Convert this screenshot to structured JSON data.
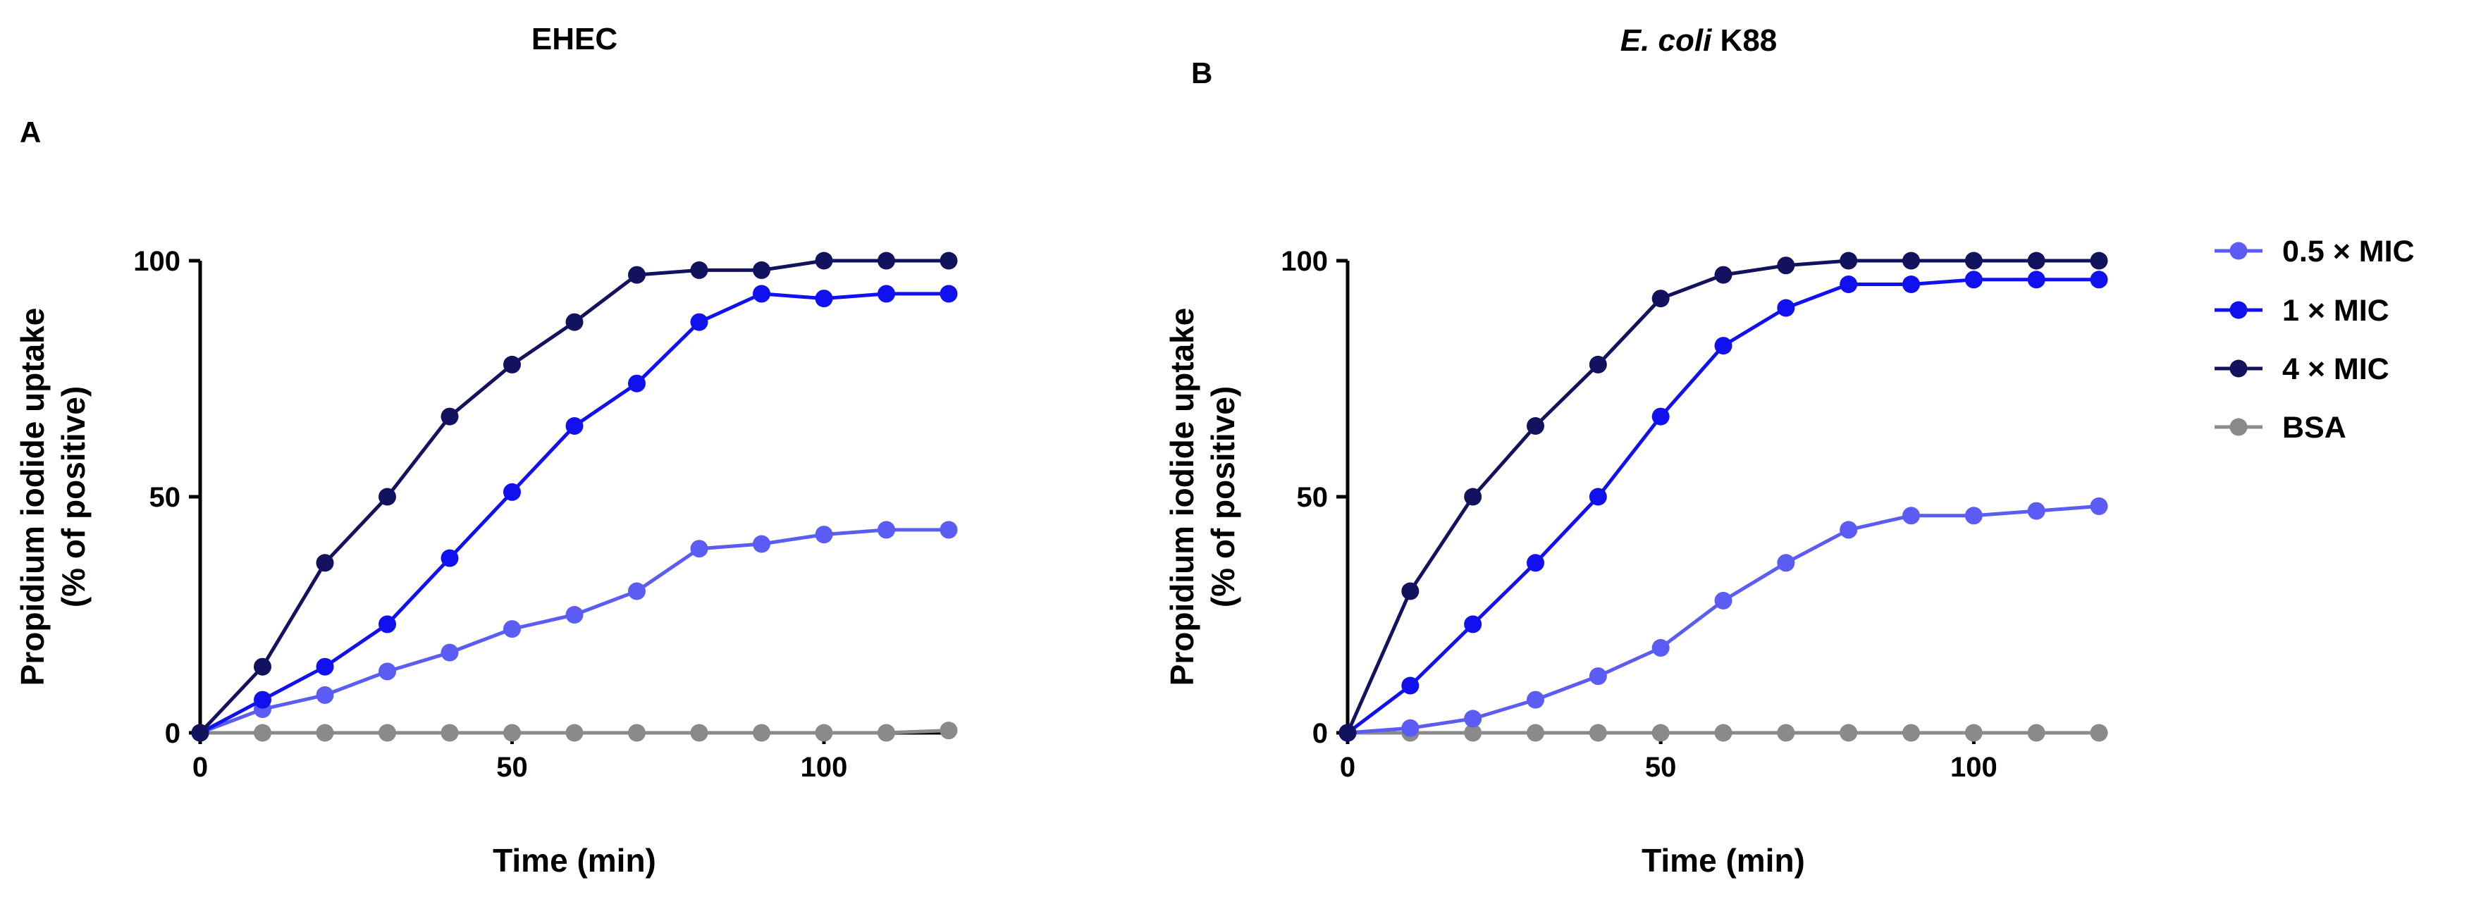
{
  "figure": {
    "panels": [
      {
        "letter": "A",
        "title": "EHEC"
      },
      {
        "letter": "B",
        "title_italic": "E. coli",
        "title_rest": " K88"
      }
    ]
  },
  "legend": [
    {
      "name": "0.5 × MIC",
      "color": "#5b5cf4"
    },
    {
      "name": "1 × MIC",
      "color": "#1111f0"
    },
    {
      "name": "4 × MIC",
      "color": "#12125f"
    },
    {
      "name": "BSA",
      "color": "#8a8a8a"
    }
  ],
  "chart_data": [
    {
      "type": "line",
      "title": "EHEC",
      "panel": "A",
      "xlabel": "Time (min)",
      "ylabel_line1": "Propidium iodide uptake",
      "ylabel_line2": "(% of positive)",
      "xlim": [
        0,
        120
      ],
      "ylim": [
        0,
        100
      ],
      "xticks": [
        0,
        50,
        100
      ],
      "yticks": [
        0,
        50,
        100
      ],
      "x": [
        0,
        10,
        20,
        30,
        40,
        50,
        60,
        70,
        80,
        90,
        100,
        110,
        120
      ],
      "series": [
        {
          "name": "0.5 × MIC",
          "values": [
            0,
            5,
            8,
            13,
            17,
            22,
            25,
            30,
            39,
            40,
            42,
            43,
            43
          ]
        },
        {
          "name": "1 × MIC",
          "values": [
            0,
            7,
            14,
            23,
            37,
            51,
            65,
            74,
            87,
            93,
            92,
            93,
            93
          ]
        },
        {
          "name": "4 × MIC",
          "values": [
            0,
            14,
            36,
            50,
            67,
            78,
            87,
            97,
            98,
            98,
            100,
            100,
            100
          ]
        },
        {
          "name": "BSA",
          "values": [
            0,
            0,
            0,
            0,
            0,
            0,
            0,
            0,
            0,
            0,
            0,
            0,
            0.5
          ]
        }
      ]
    },
    {
      "type": "line",
      "title": "E. coli K88",
      "panel": "B",
      "xlabel": "Time (min)",
      "ylabel_line1": "Propidium iodide uptake",
      "ylabel_line2": "(% of positive)",
      "xlim": [
        0,
        120
      ],
      "ylim": [
        0,
        100
      ],
      "xticks": [
        0,
        50,
        100
      ],
      "yticks": [
        0,
        50,
        100
      ],
      "x": [
        0,
        10,
        20,
        30,
        40,
        50,
        60,
        70,
        80,
        90,
        100,
        110,
        120
      ],
      "series": [
        {
          "name": "0.5 × MIC",
          "values": [
            0,
            1,
            3,
            7,
            12,
            18,
            28,
            36,
            43,
            46,
            46,
            47,
            48
          ]
        },
        {
          "name": "1 × MIC",
          "values": [
            0,
            10,
            23,
            36,
            50,
            67,
            82,
            90,
            95,
            95,
            96,
            96,
            96
          ]
        },
        {
          "name": "4 × MIC",
          "values": [
            0,
            30,
            50,
            65,
            78,
            92,
            97,
            99,
            100,
            100,
            100,
            100,
            100
          ]
        },
        {
          "name": "BSA",
          "values": [
            0,
            0,
            0,
            0,
            0,
            0,
            0,
            0,
            0,
            0,
            0,
            0,
            0
          ]
        }
      ]
    }
  ]
}
